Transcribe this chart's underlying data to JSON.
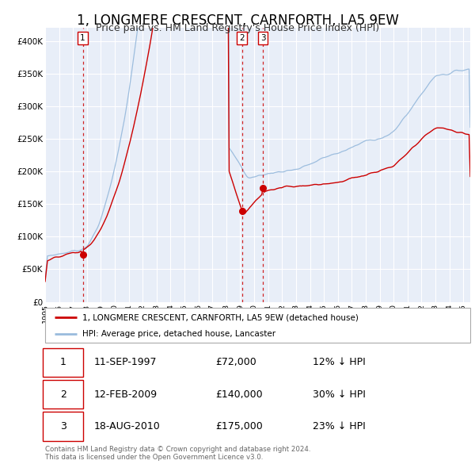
{
  "title": "1, LONGMERE CRESCENT, CARNFORTH, LA5 9EW",
  "subtitle": "Price paid vs. HM Land Registry's House Price Index (HPI)",
  "title_fontsize": 12,
  "subtitle_fontsize": 9,
  "background_color": "#ffffff",
  "plot_bg_color": "#e8eef8",
  "grid_color": "#ffffff",
  "property_color": "#cc0000",
  "hpi_color": "#99bbdd",
  "ylim": [
    0,
    420000
  ],
  "yticks": [
    0,
    50000,
    100000,
    150000,
    200000,
    250000,
    300000,
    350000,
    400000
  ],
  "ytick_labels": [
    "£0",
    "£50K",
    "£100K",
    "£150K",
    "£200K",
    "£250K",
    "£300K",
    "£350K",
    "£400K"
  ],
  "xlim_start": 1995.0,
  "xlim_end": 2025.5,
  "sale_dates": [
    1997.7,
    2009.12,
    2010.62
  ],
  "sale_prices": [
    72000,
    140000,
    175000
  ],
  "sale_labels": [
    "1",
    "2",
    "3"
  ],
  "legend_property_label": "1, LONGMERE CRESCENT, CARNFORTH, LA5 9EW (detached house)",
  "legend_hpi_label": "HPI: Average price, detached house, Lancaster",
  "table_rows": [
    {
      "num": "1",
      "date": "11-SEP-1997",
      "price": "£72,000",
      "pct": "12% ↓ HPI"
    },
    {
      "num": "2",
      "date": "12-FEB-2009",
      "price": "£140,000",
      "pct": "30% ↓ HPI"
    },
    {
      "num": "3",
      "date": "18-AUG-2010",
      "price": "£175,000",
      "pct": "23% ↓ HPI"
    }
  ],
  "footer_text": "Contains HM Land Registry data © Crown copyright and database right 2024.\nThis data is licensed under the Open Government Licence v3.0.",
  "xtick_years": [
    1995,
    1996,
    1997,
    1998,
    1999,
    2000,
    2001,
    2002,
    2003,
    2004,
    2005,
    2006,
    2007,
    2008,
    2009,
    2010,
    2011,
    2012,
    2013,
    2014,
    2015,
    2016,
    2017,
    2018,
    2019,
    2020,
    2021,
    2022,
    2023,
    2024,
    2025
  ]
}
